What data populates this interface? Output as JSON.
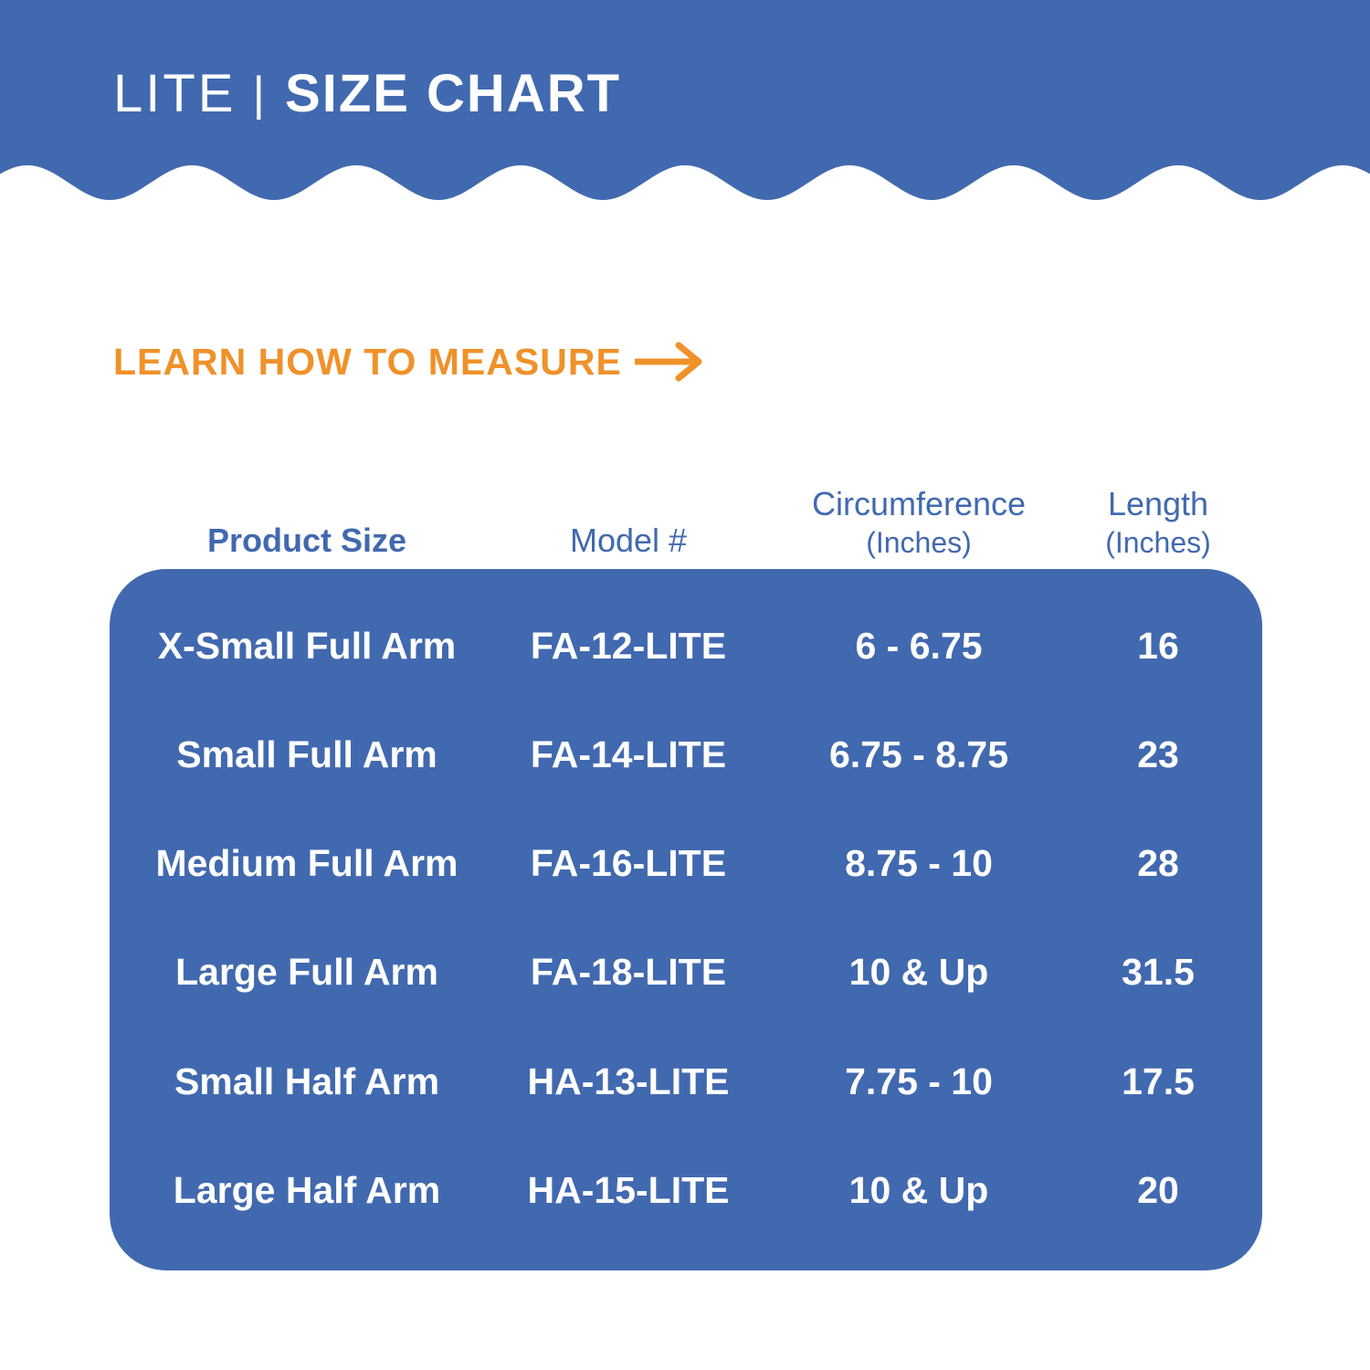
{
  "colors": {
    "brand_blue": "#4169af",
    "accent_orange": "#f0912a",
    "background": "#ffffff",
    "text_on_blue": "#ffffff"
  },
  "header": {
    "title_light": "LITE",
    "separator": "|",
    "title_bold": "SIZE CHART"
  },
  "measure_link": {
    "label": "LEARN HOW TO MEASURE",
    "icon": "arrow-right-icon"
  },
  "table": {
    "headers": {
      "size": "Product Size",
      "model": "Model #",
      "circumference": "Circumference",
      "circumference_unit": "(Inches)",
      "length": "Length",
      "length_unit": "(Inches)"
    },
    "rows": [
      {
        "size": "X-Small Full Arm",
        "model": "FA-12-LITE",
        "circumference": "6 - 6.75",
        "length": "16"
      },
      {
        "size": "Small Full Arm",
        "model": "FA-14-LITE",
        "circumference": "6.75 - 8.75",
        "length": "23"
      },
      {
        "size": "Medium Full Arm",
        "model": "FA-16-LITE",
        "circumference": "8.75 - 10",
        "length": "28"
      },
      {
        "size": "Large Full Arm",
        "model": "FA-18-LITE",
        "circumference": "10 & Up",
        "length": "31.5"
      },
      {
        "size": "Small Half Arm",
        "model": "HA-13-LITE",
        "circumference": "7.75 - 10",
        "length": "17.5"
      },
      {
        "size": "Large Half Arm",
        "model": "HA-15-LITE",
        "circumference": "10 & Up",
        "length": "20"
      }
    ]
  }
}
